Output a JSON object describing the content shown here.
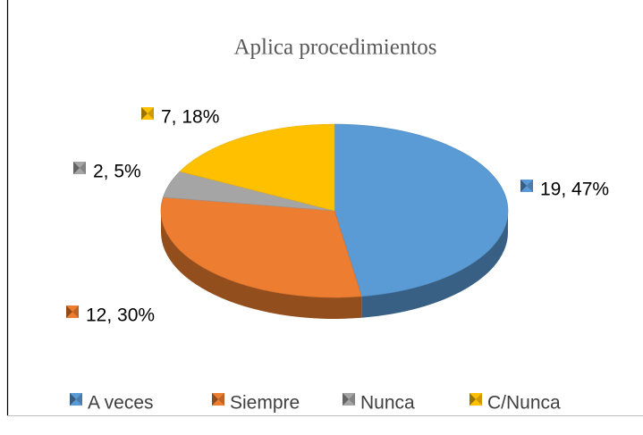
{
  "chart_data": {
    "type": "pie3d",
    "title": "Aplica procedimientos",
    "categories": [
      "A veces",
      "Siempre",
      "Nunca",
      "C/Nunca"
    ],
    "values": [
      19,
      12,
      2,
      7
    ],
    "value_labels": [
      "19, 47%",
      "12, 30%",
      "2, 5%",
      "7, 18%"
    ],
    "colors": [
      "#5b9bd5",
      "#ed7d31",
      "#a5a5a5",
      "#ffc000"
    ],
    "legend": "bottom"
  }
}
